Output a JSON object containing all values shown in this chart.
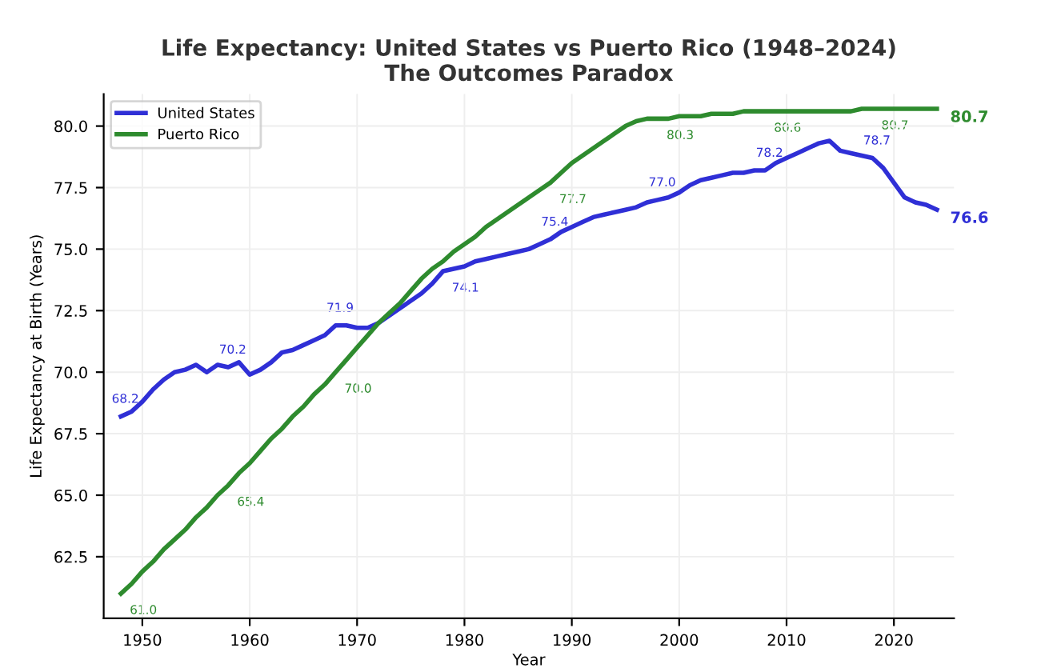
{
  "chart_data": {
    "type": "line",
    "title": "Life Expectancy: United States vs Puerto Rico (1948–2024)\nThe Outcomes Paradox",
    "xlabel": "Year",
    "ylabel": "Life Expectancy at Birth (Years)",
    "x": [
      1948,
      1949,
      1950,
      1951,
      1952,
      1953,
      1954,
      1955,
      1956,
      1957,
      1958,
      1959,
      1960,
      1961,
      1962,
      1963,
      1964,
      1965,
      1966,
      1967,
      1968,
      1969,
      1970,
      1971,
      1972,
      1973,
      1974,
      1975,
      1976,
      1977,
      1978,
      1979,
      1980,
      1981,
      1982,
      1983,
      1984,
      1985,
      1986,
      1987,
      1988,
      1989,
      1990,
      1991,
      1992,
      1993,
      1994,
      1995,
      1996,
      1997,
      1998,
      1999,
      2000,
      2001,
      2002,
      2003,
      2004,
      2005,
      2006,
      2007,
      2008,
      2009,
      2010,
      2011,
      2012,
      2013,
      2014,
      2015,
      2016,
      2017,
      2018,
      2019,
      2020,
      2021,
      2022,
      2023,
      2024
    ],
    "series": [
      {
        "name": "United States",
        "color": "#2f2fd6",
        "values": [
          68.2,
          68.4,
          68.8,
          69.3,
          69.7,
          70.0,
          70.1,
          70.3,
          70.0,
          70.3,
          70.2,
          70.4,
          69.9,
          70.1,
          70.4,
          70.8,
          70.9,
          71.1,
          71.3,
          71.5,
          71.9,
          71.9,
          71.8,
          71.8,
          72.0,
          72.3,
          72.6,
          72.9,
          73.2,
          73.6,
          74.1,
          74.2,
          74.3,
          74.5,
          74.6,
          74.7,
          74.8,
          74.9,
          75.0,
          75.2,
          75.4,
          75.7,
          75.9,
          76.1,
          76.3,
          76.4,
          76.5,
          76.6,
          76.7,
          76.9,
          77.0,
          77.1,
          77.3,
          77.6,
          77.8,
          77.9,
          78.0,
          78.1,
          78.1,
          78.2,
          78.2,
          78.5,
          78.7,
          78.9,
          79.1,
          79.3,
          79.4,
          79.0,
          78.9,
          78.8,
          78.7,
          78.3,
          77.7,
          77.1,
          76.9,
          76.8,
          76.6
        ],
        "value_labels": [
          "68.2",
          null,
          null,
          null,
          null,
          null,
          null,
          null,
          null,
          null,
          "70.2",
          null,
          null,
          null,
          null,
          null,
          null,
          null,
          null,
          null,
          "71.9",
          null,
          null,
          null,
          null,
          null,
          null,
          null,
          null,
          null,
          "74.1",
          null,
          null,
          null,
          null,
          null,
          null,
          null,
          null,
          null,
          "75.4",
          null,
          null,
          null,
          null,
          null,
          null,
          null,
          null,
          null,
          "77.0",
          null,
          null,
          null,
          null,
          null,
          null,
          null,
          null,
          null,
          "78.2",
          null,
          null,
          null,
          null,
          null,
          null,
          null,
          null,
          null,
          "78.7",
          null,
          null,
          null,
          null,
          null,
          "76.6"
        ]
      },
      {
        "name": "Puerto Rico",
        "color": "#2e8b2e",
        "values": [
          61.0,
          61.4,
          61.9,
          62.3,
          62.8,
          63.2,
          63.6,
          64.1,
          64.5,
          65.0,
          65.4,
          65.9,
          66.3,
          66.8,
          67.3,
          67.7,
          68.2,
          68.6,
          69.1,
          69.5,
          70.0,
          70.5,
          71.0,
          71.5,
          72.0,
          72.4,
          72.8,
          73.3,
          73.8,
          74.2,
          74.5,
          74.9,
          75.2,
          75.5,
          75.9,
          76.2,
          76.5,
          76.8,
          77.1,
          77.4,
          77.7,
          78.1,
          78.5,
          78.8,
          79.1,
          79.4,
          79.7,
          80.0,
          80.2,
          80.3,
          80.3,
          80.3,
          80.4,
          80.4,
          80.4,
          80.5,
          80.5,
          80.5,
          80.6,
          80.6,
          80.6,
          80.6,
          80.6,
          80.6,
          80.6,
          80.6,
          80.6,
          80.6,
          80.6,
          80.7,
          80.7,
          80.7,
          80.7,
          80.7,
          80.7,
          80.7,
          80.7
        ],
        "value_labels": [
          "61.0",
          null,
          null,
          null,
          null,
          null,
          null,
          null,
          null,
          null,
          "65.4",
          null,
          null,
          null,
          null,
          null,
          null,
          null,
          null,
          null,
          "70.0",
          null,
          null,
          null,
          null,
          null,
          null,
          null,
          null,
          null,
          null,
          null,
          null,
          null,
          null,
          null,
          null,
          null,
          null,
          null,
          "77.7",
          null,
          null,
          null,
          null,
          null,
          null,
          null,
          null,
          null,
          "80.3",
          null,
          null,
          null,
          null,
          null,
          null,
          null,
          null,
          null,
          "80.6",
          null,
          null,
          null,
          null,
          null,
          null,
          null,
          null,
          null,
          "80.7",
          null,
          null,
          null,
          null,
          null,
          "80.7"
        ]
      }
    ],
    "xlim": [
      1946.4,
      2025.6
    ],
    "ylim": [
      60.0,
      81.3
    ],
    "xticks": [
      1950,
      1960,
      1970,
      1980,
      1990,
      2000,
      2010,
      2020
    ],
    "yticks": [
      {
        "value": 62.5,
        "label": "62.5"
      },
      {
        "value": 65.0,
        "label": "65.0"
      },
      {
        "value": 67.5,
        "label": "67.5"
      },
      {
        "value": 70.0,
        "label": "70.0"
      },
      {
        "value": 72.5,
        "label": "72.5"
      },
      {
        "value": 75.0,
        "label": "75.0"
      },
      {
        "value": 77.5,
        "label": "77.5"
      },
      {
        "value": 80.0,
        "label": "80.0"
      }
    ],
    "grid": true,
    "legend": "top left"
  }
}
